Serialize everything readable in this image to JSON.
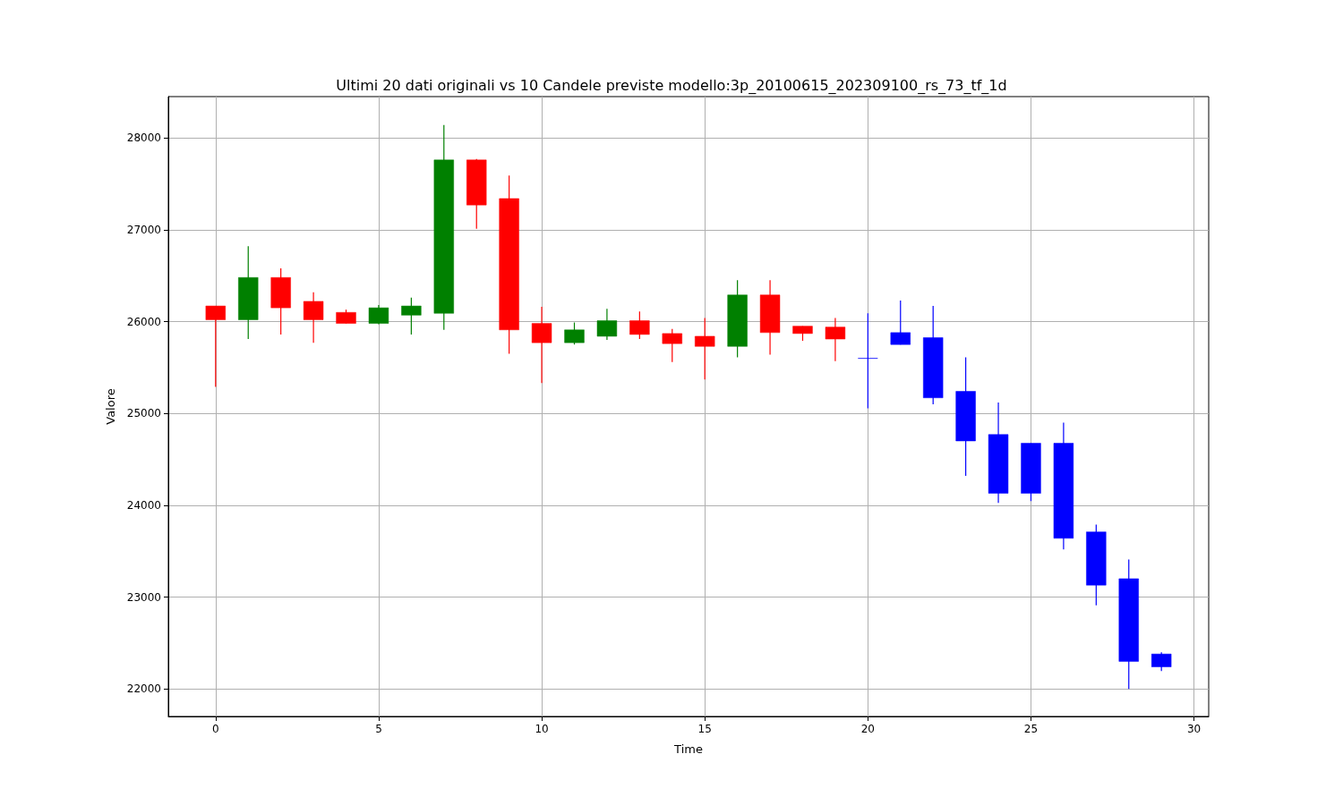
{
  "chart_data": {
    "type": "candlestick",
    "title": "Ultimi 20 dati originali vs 10 Candele previste modello:3p_20100615_202309100_rs_73_tf_1d",
    "xlabel": "Time",
    "ylabel": "Valore",
    "xlim": [
      -1.45,
      30.45
    ],
    "xticks": [
      0,
      5,
      10,
      15,
      20,
      25,
      30
    ],
    "ylim": [
      21700,
      28450
    ],
    "yticks": [
      22000,
      23000,
      24000,
      25000,
      26000,
      27000,
      28000
    ],
    "grid": true,
    "series": [
      {
        "x": [
          0,
          1,
          2,
          3,
          4,
          5,
          6,
          7,
          8,
          9,
          10,
          11,
          12,
          13,
          14,
          15,
          16,
          17,
          18,
          19
        ],
        "ohlc": [
          [
            26170,
            26170,
            25290,
            26020
          ],
          [
            26020,
            26820,
            25810,
            26480
          ],
          [
            26480,
            26580,
            25860,
            26150
          ],
          [
            26220,
            26320,
            25770,
            26020
          ],
          [
            26100,
            26130,
            25980,
            25980
          ],
          [
            25980,
            26180,
            25970,
            26150
          ],
          [
            26070,
            26260,
            25860,
            26170
          ],
          [
            26090,
            28140,
            25910,
            27760
          ],
          [
            27760,
            27770,
            27010,
            27270
          ],
          [
            27340,
            27590,
            25650,
            25910
          ],
          [
            25980,
            26160,
            25330,
            25770
          ],
          [
            25770,
            25990,
            25750,
            25910
          ],
          [
            25840,
            26140,
            25800,
            26010
          ],
          [
            26010,
            26110,
            25810,
            25860
          ],
          [
            25870,
            25920,
            25560,
            25760
          ],
          [
            25840,
            26040,
            25370,
            25730
          ],
          [
            25730,
            26450,
            25610,
            26290
          ],
          [
            26290,
            26450,
            25640,
            25880
          ],
          [
            25950,
            25950,
            25790,
            25870
          ],
          [
            25940,
            26040,
            25570,
            25810
          ]
        ],
        "colors": [
          "#ff0000",
          "#008000",
          "#ff0000",
          "#ff0000",
          "#ff0000",
          "#008000",
          "#008000",
          "#008000",
          "#ff0000",
          "#ff0000",
          "#ff0000",
          "#008000",
          "#008000",
          "#ff0000",
          "#ff0000",
          "#ff0000",
          "#008000",
          "#ff0000",
          "#ff0000",
          "#ff0000"
        ]
      },
      {
        "x": [
          20,
          21,
          22,
          23,
          24,
          25,
          26,
          27,
          28,
          29
        ],
        "ohlc": [
          [
            25600,
            26090,
            25055,
            25600
          ],
          [
            25880,
            26230,
            25750,
            25750
          ],
          [
            25825,
            26170,
            25100,
            25170
          ],
          [
            25240,
            25610,
            24320,
            24700
          ],
          [
            24770,
            25120,
            24025,
            24130
          ],
          [
            24675,
            24675,
            24045,
            24130
          ],
          [
            24675,
            24900,
            23520,
            23640
          ],
          [
            23710,
            23790,
            22910,
            23130
          ],
          [
            23200,
            23410,
            22000,
            22300
          ],
          [
            22380,
            22400,
            22195,
            22240
          ]
        ],
        "color": "#0000ff"
      }
    ]
  }
}
